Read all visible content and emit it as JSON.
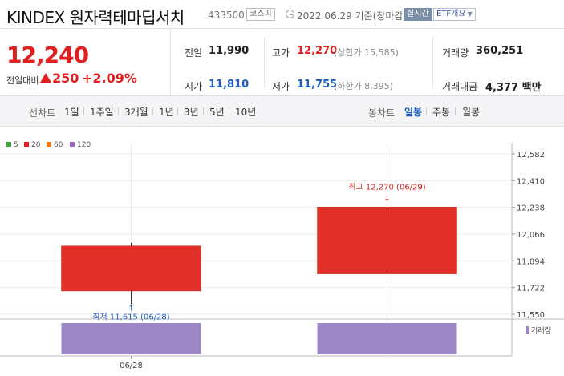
{
  "header": {
    "title": "KINDEX 원자력테마딥서치",
    "code": "433500",
    "market_badge": "코스피",
    "date": "2022.06.29 기준(장마감)",
    "live_badge": "실시간",
    "etf_badge": "ETF개요"
  },
  "price": {
    "current": "12,240",
    "diff_label": "전일대비",
    "diff_value": "250",
    "diff_pct": "+2.09%",
    "direction": "up"
  },
  "stats": {
    "prev_close_label": "전일",
    "prev_close": "11,990",
    "high_label": "고가",
    "high": "12,270",
    "upper_limit": "(상한가 15,585)",
    "volume_label": "거래량",
    "volume": "360,251",
    "open_label": "시가",
    "open": "11,810",
    "low_label": "저가",
    "low": "11,755",
    "lower_limit": "(하한가 8,395)",
    "amount_label": "거래대금",
    "amount": "4,377 백만"
  },
  "tabs": {
    "line_label": "선차트",
    "line_tabs": [
      "1일",
      "1주일",
      "3개월",
      "1년",
      "3년",
      "5년",
      "10년"
    ],
    "candle_label": "봉차트",
    "candle_tabs": [
      "일봉",
      "주봉",
      "월봉"
    ],
    "active_candle": "일봉"
  },
  "legend": [
    {
      "label": "5",
      "color": "#3aa83a"
    },
    {
      "label": "20",
      "color": "#e02020"
    },
    {
      "label": "60",
      "color": "#f07a1a"
    },
    {
      "label": "120",
      "color": "#9a66cc"
    }
  ],
  "chart_data": {
    "type": "candlestick",
    "y_ticks": [
      "12,582",
      "12,410",
      "12,238",
      "12,066",
      "11,894",
      "11,722",
      "11,550"
    ],
    "ylim": [
      11550,
      12582
    ],
    "candles": [
      {
        "date": "06/28",
        "open": 11700,
        "close": 11990,
        "high": 12010,
        "low": 11615
      },
      {
        "date": "06/29",
        "open": 11810,
        "close": 12240,
        "high": 12270,
        "low": 11755
      }
    ],
    "volumes": [
      1,
      1
    ],
    "x_labels": [
      "06/28"
    ],
    "annotations": {
      "high": "최고 12,270 (06/29)",
      "low": "최저 11,615 (06/28)"
    },
    "volume_label": "거래량",
    "up_color": "#e03027",
    "volume_color": "#9c87c6"
  }
}
